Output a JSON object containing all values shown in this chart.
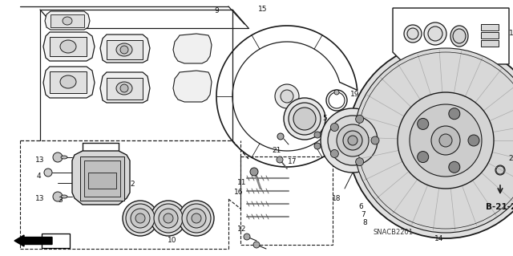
{
  "bg_color": "#ffffff",
  "line_color": "#1a1a1a",
  "diagram_code": "SNACB2201",
  "ref_code": "B-21-2",
  "figsize": [
    6.4,
    3.19
  ],
  "dpi": 100
}
